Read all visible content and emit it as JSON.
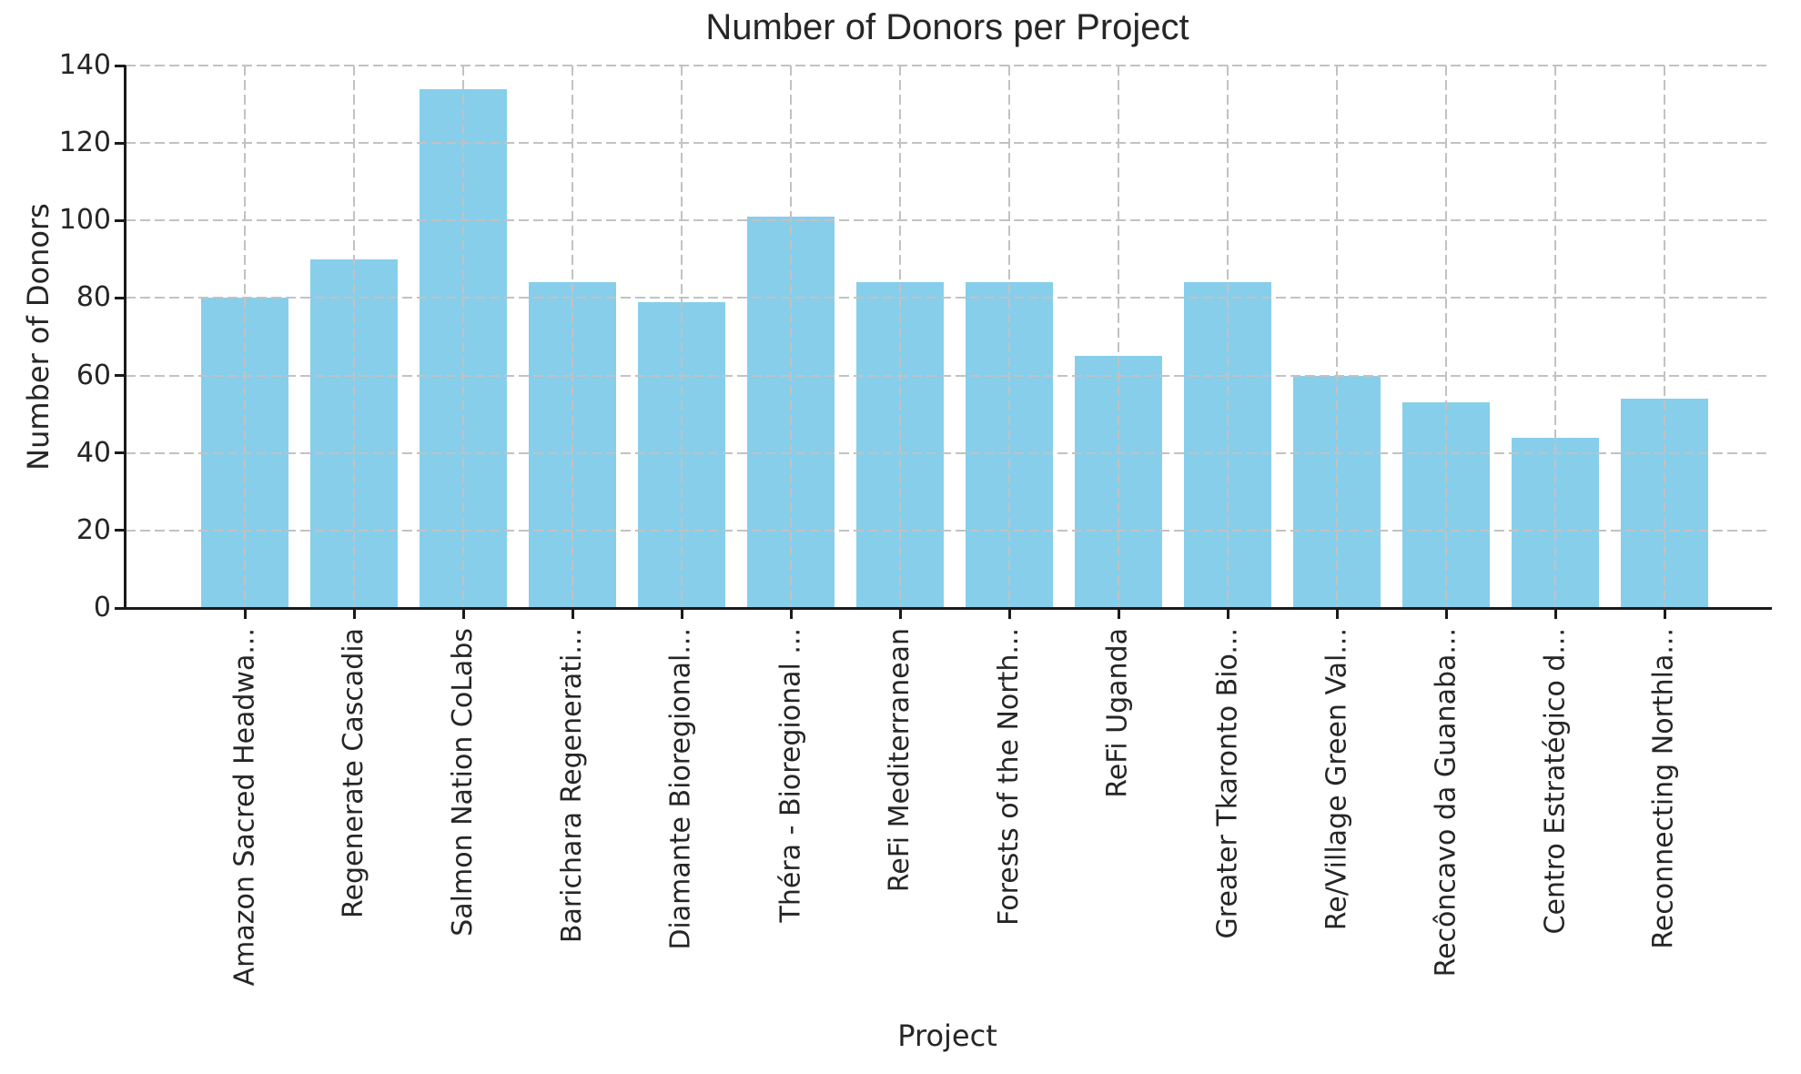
{
  "chart_data": {
    "type": "bar",
    "title": "Number of Donors per Project",
    "xlabel": "Project",
    "ylabel": "Number of Donors",
    "categories": [
      "Amazon Sacred Headwa...",
      "Regenerate Cascadia",
      "Salmon Nation CoLabs",
      "Barichara Regenerati...",
      "Diamante Bioregional...",
      "Théra - Bioregional ...",
      "ReFi Mediterranean",
      "Forests of the North...",
      "ReFi Uganda",
      "Greater Tkaronto Bio...",
      "Re/Village Green Val...",
      "Recôncavo da Guanaba...",
      "Centro Estratégico d...",
      "Reconnecting Northla..."
    ],
    "values": [
      80,
      90,
      134,
      84,
      79,
      101,
      84,
      84,
      65,
      84,
      60,
      53,
      44,
      54
    ],
    "ylim": [
      0,
      140
    ],
    "yticks": [
      0,
      20,
      40,
      60,
      80,
      100,
      120,
      140
    ],
    "grid": true,
    "legend": false,
    "bar_color": "#87CEEB",
    "grid_color": "#c2c2c2",
    "axis_color": "#1a1a1a",
    "text_color": "#262626"
  }
}
